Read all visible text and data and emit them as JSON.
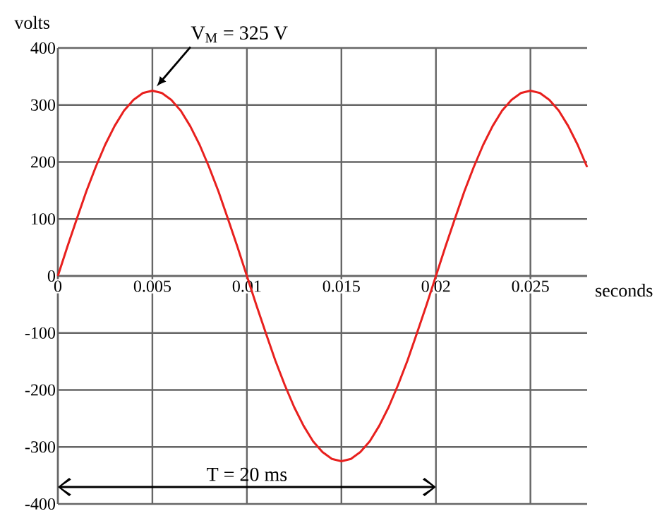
{
  "chart_data": {
    "type": "line",
    "xlabel": "seconds",
    "ylabel": "volts",
    "x": [
      0,
      0.0005,
      0.001,
      0.0015,
      0.002,
      0.0025,
      0.003,
      0.0035,
      0.004,
      0.0045,
      0.005,
      0.0055,
      0.006,
      0.0065,
      0.007,
      0.0075,
      0.008,
      0.0085,
      0.009,
      0.0095,
      0.01,
      0.0105,
      0.011,
      0.0115,
      0.012,
      0.0125,
      0.013,
      0.0135,
      0.014,
      0.0145,
      0.015,
      0.0155,
      0.016,
      0.0165,
      0.017,
      0.0175,
      0.018,
      0.0185,
      0.019,
      0.0195,
      0.02,
      0.0205,
      0.021,
      0.0215,
      0.022,
      0.0225,
      0.023,
      0.0235,
      0.024,
      0.0245,
      0.025,
      0.0255,
      0.026,
      0.0265,
      0.027,
      0.0275,
      0.028
    ],
    "values": [
      0,
      51,
      100,
      148,
      191,
      230,
      263,
      290,
      309,
      321,
      325,
      321,
      309,
      290,
      263,
      230,
      191,
      148,
      100,
      51,
      0,
      -51,
      -100,
      -148,
      -191,
      -230,
      -263,
      -290,
      -309,
      -321,
      -325,
      -321,
      -309,
      -290,
      -263,
      -230,
      -191,
      -148,
      -100,
      -51,
      0,
      51,
      100,
      148,
      191,
      230,
      263,
      290,
      309,
      321,
      325,
      321,
      309,
      290,
      263,
      230,
      191
    ],
    "color": "#e8201e",
    "xlim": [
      0,
      0.028
    ],
    "ylim": [
      -400,
      400
    ],
    "xticks": [
      0,
      0.005,
      0.01,
      0.015,
      0.02,
      0.025
    ],
    "yticks": [
      -400,
      -300,
      -200,
      -100,
      0,
      100,
      200,
      300,
      400
    ],
    "grid": true,
    "marker": "none",
    "line_style": "solid",
    "annotations": [
      "V$_{M}$ = 325 V",
      "T = 20 ms"
    ]
  }
}
